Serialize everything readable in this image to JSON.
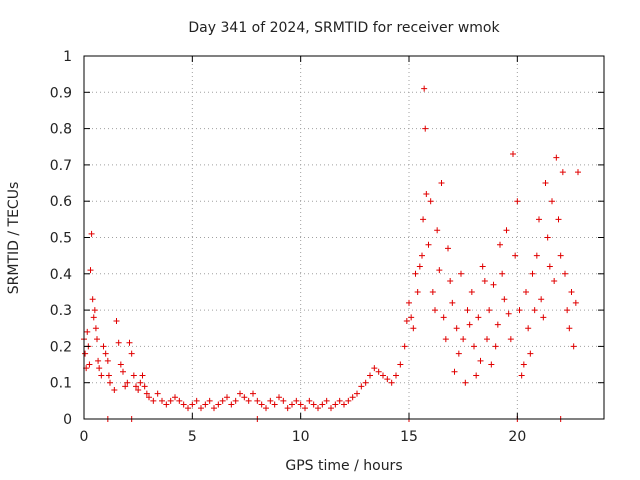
{
  "colors": {
    "series": "#e00000",
    "grid": "#a0a0a0",
    "axis": "#000000"
  },
  "chart_data": {
    "type": "scatter",
    "title": "Day 341 of 2024, SRMTID for receiver wmok",
    "xlabel": "GPS time / hours",
    "ylabel": "SRMTID / TECUs",
    "xlim": [
      0,
      24
    ],
    "ylim": [
      0,
      1
    ],
    "x_ticks": [
      0,
      5,
      10,
      15,
      20
    ],
    "x_tick_labels": [
      "0",
      "5",
      "10",
      "15",
      "20"
    ],
    "y_ticks": [
      0,
      0.1,
      0.2,
      0.3,
      0.4,
      0.5,
      0.6,
      0.7,
      0.8,
      0.9,
      1
    ],
    "y_tick_labels": [
      "0",
      "0.1",
      "0.2",
      "0.3",
      "0.4",
      "0.5",
      "0.6",
      "0.7",
      "0.8",
      "0.9",
      "1"
    ],
    "grid": true,
    "marker": "plus",
    "series": [
      {
        "name": "SRMTID",
        "x": [
          0.0,
          0.05,
          0.1,
          0.15,
          0.2,
          0.25,
          0.3,
          0.35,
          0.4,
          0.45,
          0.5,
          0.55,
          0.6,
          0.65,
          0.7,
          0.8,
          0.9,
          1.0,
          1.1,
          1.15,
          1.2,
          1.4,
          1.5,
          1.6,
          1.7,
          1.8,
          1.9,
          2.0,
          2.1,
          2.2,
          2.3,
          2.4,
          2.5,
          2.6,
          2.7,
          2.8,
          2.9,
          3.0,
          3.2,
          3.4,
          3.6,
          3.8,
          4.0,
          4.2,
          4.4,
          4.6,
          4.8,
          5.0,
          5.2,
          5.4,
          5.6,
          5.8,
          6.0,
          6.2,
          6.4,
          6.6,
          6.8,
          7.0,
          7.2,
          7.4,
          7.6,
          7.8,
          8.0,
          8.2,
          8.4,
          8.6,
          8.8,
          9.0,
          9.2,
          9.4,
          9.6,
          9.8,
          10.0,
          10.2,
          10.4,
          10.6,
          10.8,
          11.0,
          11.2,
          11.4,
          11.6,
          11.8,
          12.0,
          12.2,
          12.4,
          12.6,
          12.8,
          13.0,
          13.2,
          13.4,
          13.6,
          13.8,
          14.0,
          14.2,
          14.4,
          14.6,
          14.8,
          14.9,
          15.0,
          15.1,
          15.2,
          15.3,
          15.4,
          15.5,
          15.6,
          15.65,
          15.7,
          15.75,
          15.8,
          15.9,
          16.0,
          16.1,
          16.2,
          16.3,
          16.4,
          16.5,
          16.6,
          16.7,
          16.8,
          16.9,
          17.0,
          17.1,
          17.2,
          17.3,
          17.4,
          17.5,
          17.6,
          17.7,
          17.8,
          17.9,
          18.0,
          18.1,
          18.2,
          18.3,
          18.4,
          18.5,
          18.6,
          18.7,
          18.8,
          18.9,
          19.0,
          19.1,
          19.2,
          19.3,
          19.4,
          19.5,
          19.6,
          19.7,
          19.8,
          19.9,
          20.0,
          20.1,
          20.2,
          20.3,
          20.4,
          20.5,
          20.6,
          20.7,
          20.8,
          20.9,
          21.0,
          21.1,
          21.2,
          21.3,
          21.4,
          21.5,
          21.6,
          21.7,
          21.8,
          21.9,
          22.0,
          22.1,
          22.2,
          22.3,
          22.4,
          22.5,
          22.6,
          22.7,
          22.8,
          1.1,
          2.2,
          8.0,
          15.0,
          20.0,
          22.0
        ],
        "y": [
          0.22,
          0.18,
          0.14,
          0.24,
          0.2,
          0.15,
          0.41,
          0.51,
          0.33,
          0.28,
          0.3,
          0.25,
          0.22,
          0.16,
          0.14,
          0.12,
          0.2,
          0.18,
          0.16,
          0.12,
          0.1,
          0.08,
          0.27,
          0.21,
          0.15,
          0.13,
          0.09,
          0.1,
          0.21,
          0.18,
          0.12,
          0.09,
          0.08,
          0.1,
          0.12,
          0.09,
          0.07,
          0.06,
          0.05,
          0.07,
          0.05,
          0.04,
          0.05,
          0.06,
          0.05,
          0.04,
          0.03,
          0.04,
          0.05,
          0.03,
          0.04,
          0.05,
          0.03,
          0.04,
          0.05,
          0.06,
          0.04,
          0.05,
          0.07,
          0.06,
          0.05,
          0.07,
          0.05,
          0.04,
          0.03,
          0.05,
          0.04,
          0.06,
          0.05,
          0.03,
          0.04,
          0.05,
          0.04,
          0.03,
          0.05,
          0.04,
          0.03,
          0.04,
          0.05,
          0.03,
          0.04,
          0.05,
          0.04,
          0.05,
          0.06,
          0.07,
          0.09,
          0.1,
          0.12,
          0.14,
          0.13,
          0.12,
          0.11,
          0.1,
          0.12,
          0.15,
          0.2,
          0.27,
          0.32,
          0.28,
          0.25,
          0.4,
          0.35,
          0.42,
          0.45,
          0.55,
          0.91,
          0.8,
          0.62,
          0.48,
          0.6,
          0.35,
          0.3,
          0.52,
          0.41,
          0.65,
          0.28,
          0.22,
          0.47,
          0.38,
          0.32,
          0.13,
          0.25,
          0.18,
          0.4,
          0.22,
          0.1,
          0.3,
          0.26,
          0.35,
          0.2,
          0.12,
          0.28,
          0.16,
          0.42,
          0.38,
          0.22,
          0.3,
          0.15,
          0.37,
          0.2,
          0.26,
          0.48,
          0.4,
          0.33,
          0.52,
          0.29,
          0.22,
          0.73,
          0.45,
          0.6,
          0.3,
          0.12,
          0.15,
          0.35,
          0.25,
          0.18,
          0.4,
          0.3,
          0.45,
          0.55,
          0.33,
          0.28,
          0.65,
          0.5,
          0.42,
          0.6,
          0.38,
          0.72,
          0.55,
          0.45,
          0.68,
          0.4,
          0.3,
          0.25,
          0.35,
          0.2,
          0.32,
          0.68,
          0.0,
          0.0,
          0.0,
          0.0,
          0.0,
          0.0
        ]
      }
    ]
  }
}
